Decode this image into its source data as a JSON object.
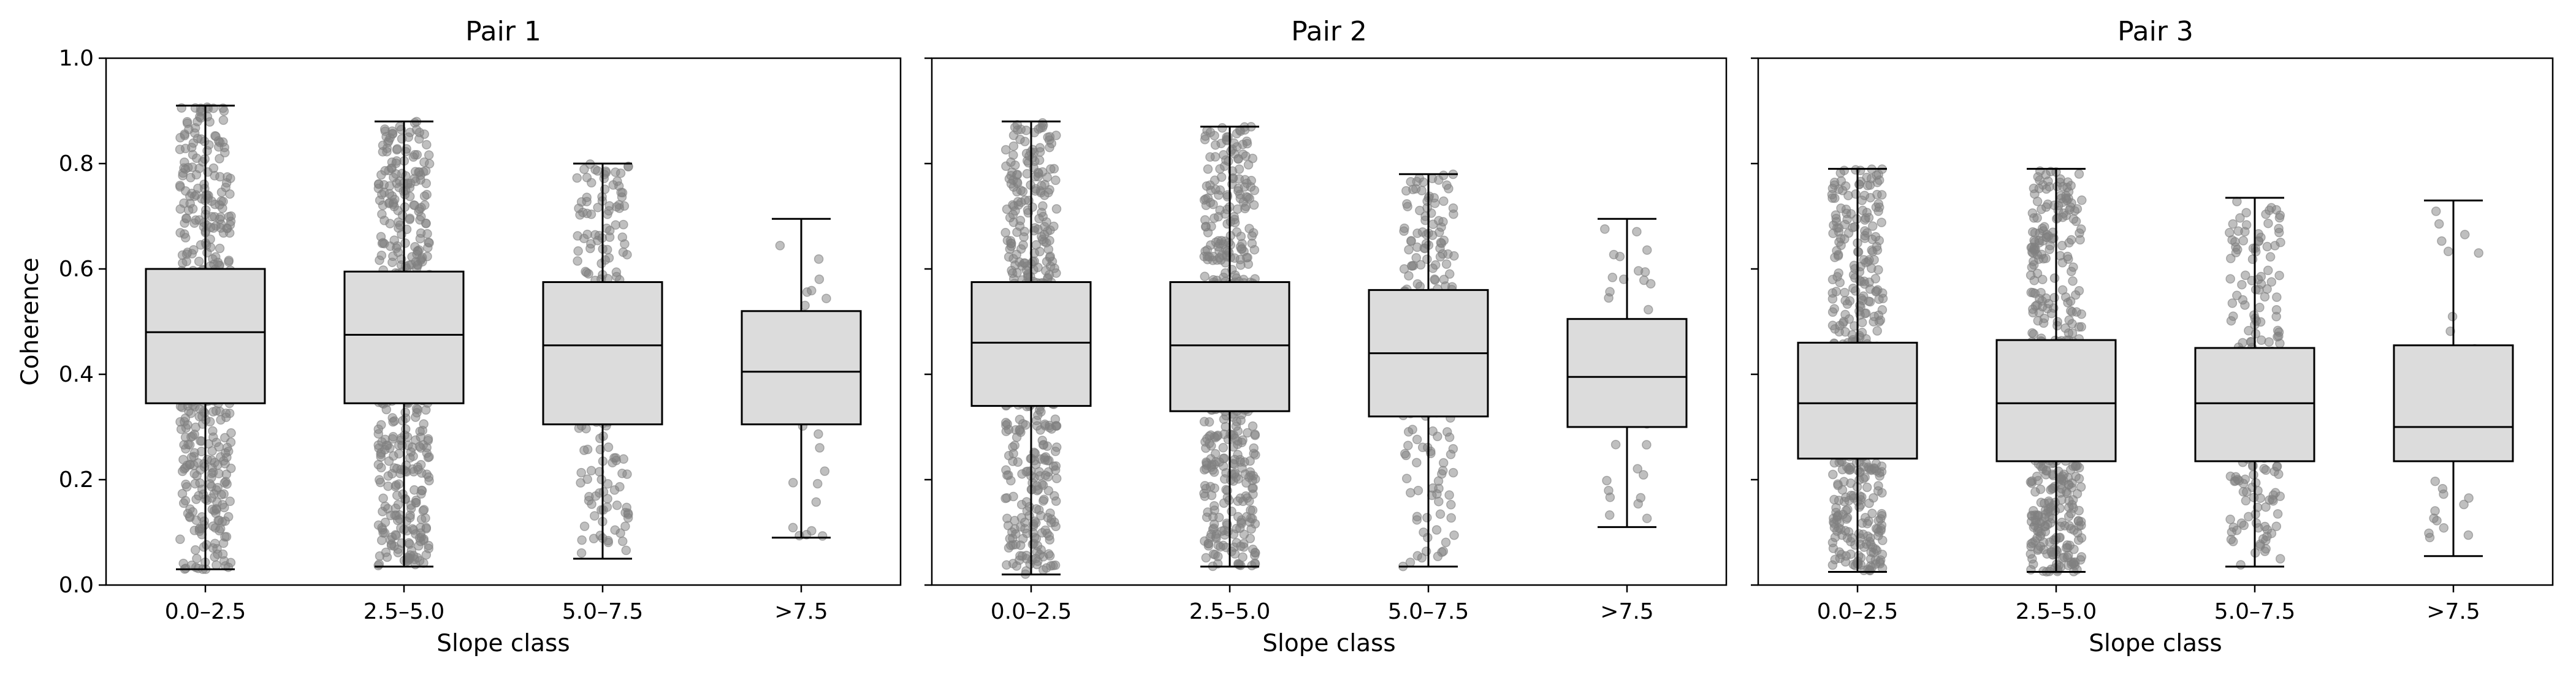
{
  "chart_data": [
    {
      "type": "boxplot",
      "title": "Pair 1",
      "xlabel": "Slope class",
      "ylabel": "Coherence",
      "ylim": [
        0,
        1
      ],
      "yticks": [
        "0.0",
        "0.2",
        "0.4",
        "0.6",
        "0.8",
        "1.0"
      ],
      "categories": [
        "0.0–2.5",
        "2.5–5.0",
        "5.0–7.5",
        ">7.5"
      ],
      "boxes": [
        {
          "whisker_low": 0.03,
          "q1": 0.345,
          "median": 0.48,
          "q3": 0.6,
          "whisker_high": 0.91
        },
        {
          "whisker_low": 0.035,
          "q1": 0.345,
          "median": 0.475,
          "q3": 0.595,
          "whisker_high": 0.88
        },
        {
          "whisker_low": 0.05,
          "q1": 0.305,
          "median": 0.455,
          "q3": 0.575,
          "whisker_high": 0.8
        },
        {
          "whisker_low": 0.09,
          "q1": 0.305,
          "median": 0.405,
          "q3": 0.52,
          "whisker_high": 0.695
        }
      ]
    },
    {
      "type": "boxplot",
      "title": "Pair 2",
      "xlabel": "Slope class",
      "ylabel": "",
      "ylim": [
        0,
        1
      ],
      "categories": [
        "0.0–2.5",
        "2.5–5.0",
        "5.0–7.5",
        ">7.5"
      ],
      "boxes": [
        {
          "whisker_low": 0.02,
          "q1": 0.34,
          "median": 0.46,
          "q3": 0.575,
          "whisker_high": 0.88
        },
        {
          "whisker_low": 0.035,
          "q1": 0.33,
          "median": 0.455,
          "q3": 0.575,
          "whisker_high": 0.87
        },
        {
          "whisker_low": 0.035,
          "q1": 0.32,
          "median": 0.44,
          "q3": 0.56,
          "whisker_high": 0.78
        },
        {
          "whisker_low": 0.11,
          "q1": 0.3,
          "median": 0.395,
          "q3": 0.505,
          "whisker_high": 0.695
        }
      ]
    },
    {
      "type": "boxplot",
      "title": "Pair 3",
      "xlabel": "Slope class",
      "ylabel": "",
      "ylim": [
        0,
        1
      ],
      "categories": [
        "0.0–2.5",
        "2.5–5.0",
        "5.0–7.5",
        ">7.5"
      ],
      "boxes": [
        {
          "whisker_low": 0.025,
          "q1": 0.24,
          "median": 0.345,
          "q3": 0.46,
          "whisker_high": 0.79
        },
        {
          "whisker_low": 0.025,
          "q1": 0.235,
          "median": 0.345,
          "q3": 0.465,
          "whisker_high": 0.79
        },
        {
          "whisker_low": 0.035,
          "q1": 0.235,
          "median": 0.345,
          "q3": 0.45,
          "whisker_high": 0.735
        },
        {
          "whisker_low": 0.055,
          "q1": 0.235,
          "median": 0.3,
          "q3": 0.455,
          "whisker_high": 0.73
        }
      ]
    }
  ],
  "colors": {
    "box_fill": "#dcdcdc",
    "points": "#808080",
    "lines": "#000000"
  }
}
